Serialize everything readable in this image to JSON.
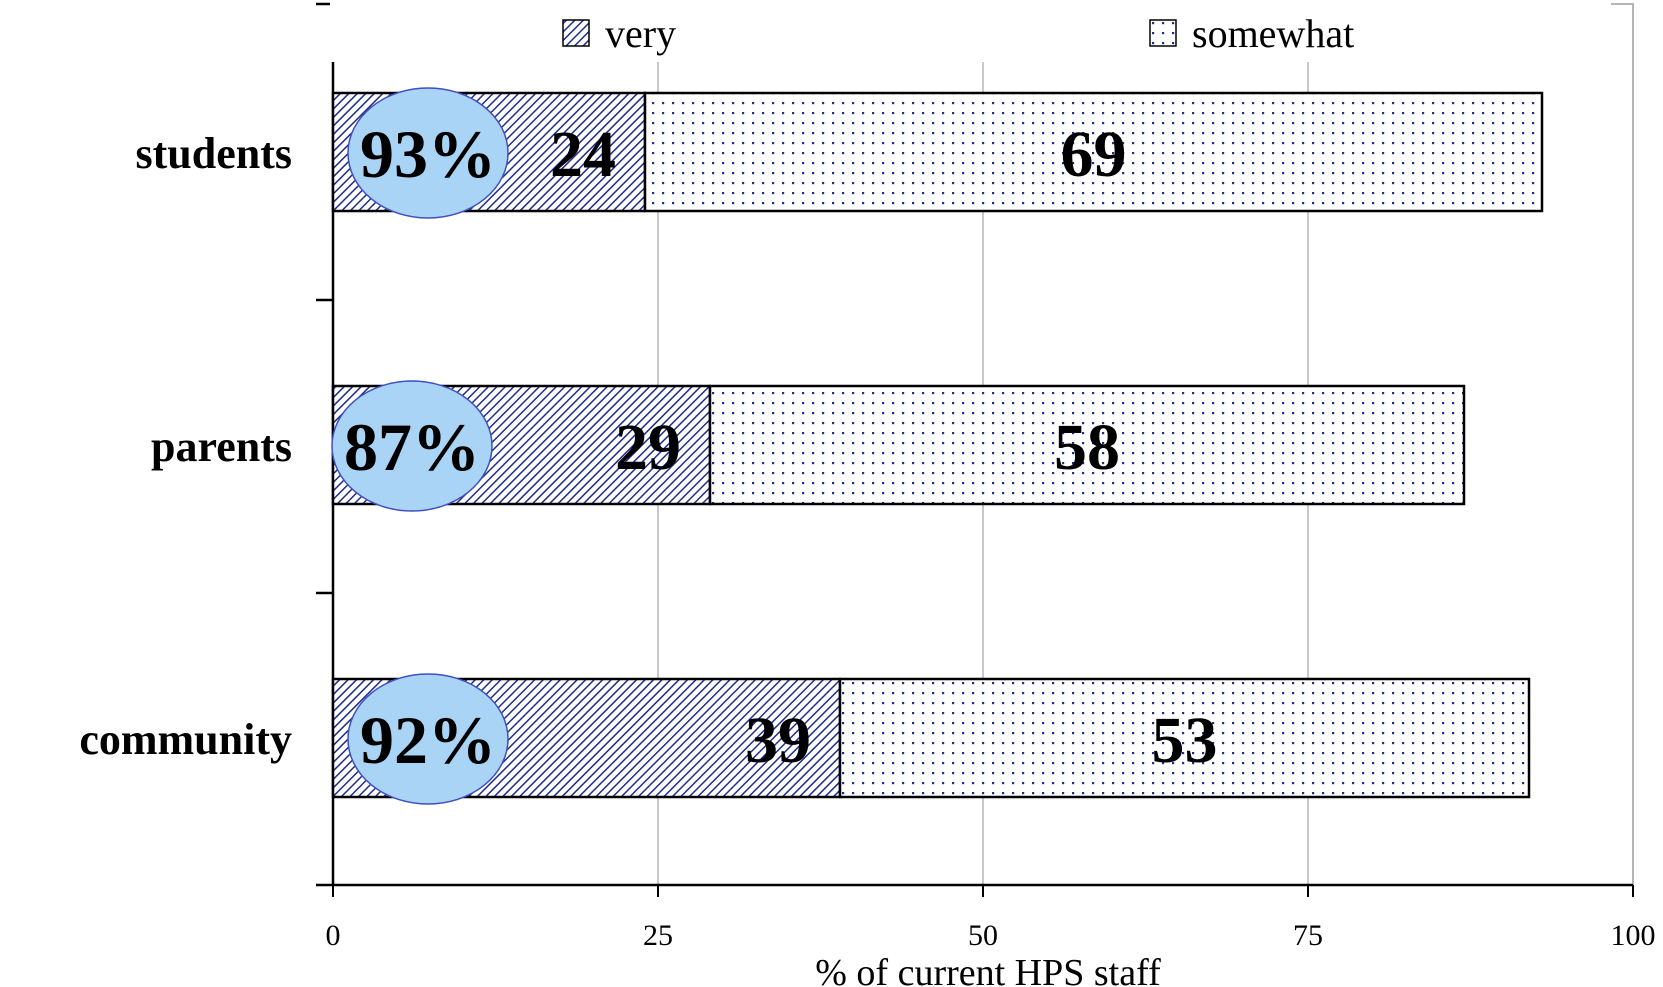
{
  "chart_data": {
    "type": "bar",
    "orientation": "horizontal",
    "stacked": true,
    "categories": [
      "students",
      "parents",
      "community"
    ],
    "series": [
      {
        "name": "very",
        "values": [
          24,
          29,
          39
        ],
        "pattern": "diagonal-hatch",
        "color": "#1f2d8a"
      },
      {
        "name": "somewhat",
        "values": [
          69,
          58,
          53
        ],
        "pattern": "dots",
        "color": "#1f2d8a"
      }
    ],
    "totals": [
      "93%",
      "87%",
      "92%"
    ],
    "total_bubble_color": "#a9d4f5",
    "xlabel": "% of current HPS staff",
    "ylabel": "",
    "xlim": [
      0,
      100
    ],
    "xticks": [
      0,
      25,
      50,
      75,
      100
    ],
    "grid": true,
    "legend_position": "top"
  }
}
